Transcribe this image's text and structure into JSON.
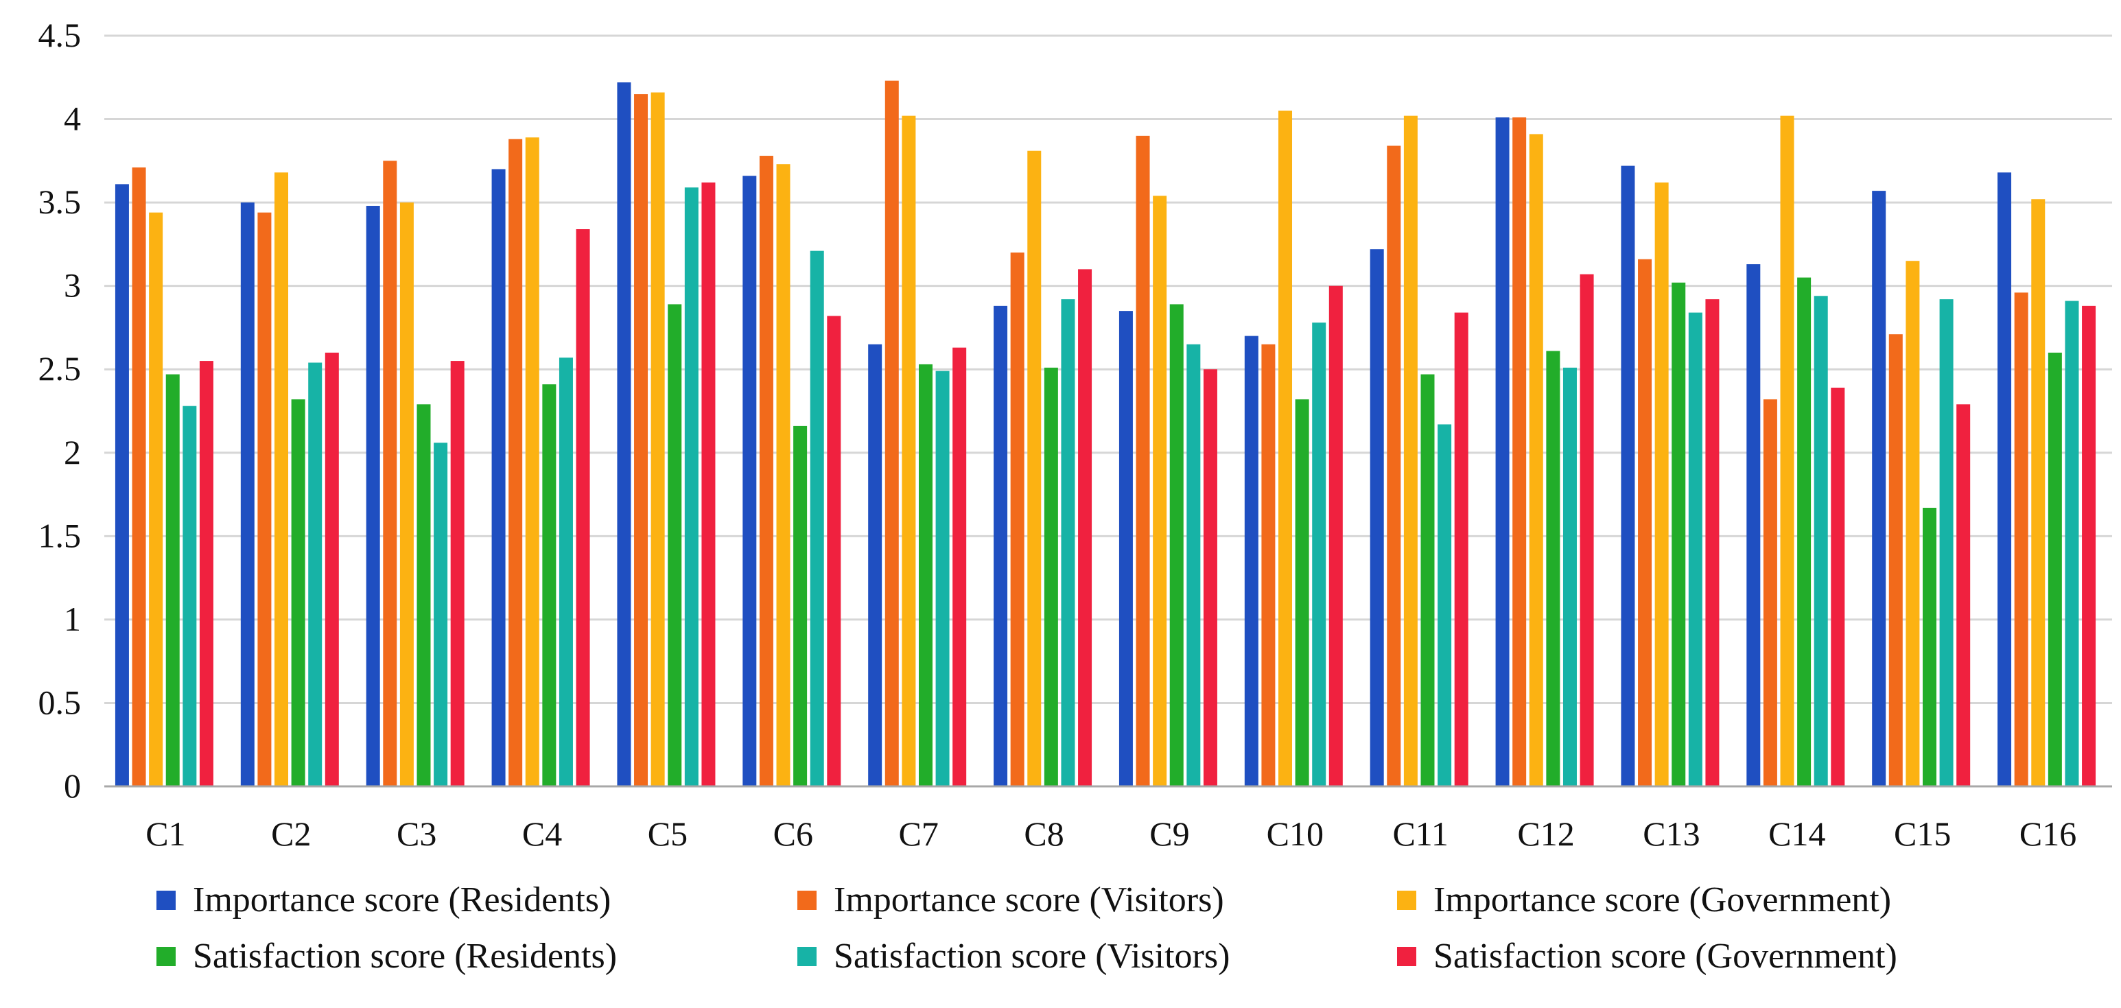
{
  "chart_data": {
    "type": "bar",
    "title": "",
    "xlabel": "",
    "ylabel": "",
    "ylim": [
      0,
      4.5
    ],
    "yticks": [
      0,
      0.5,
      1,
      1.5,
      2,
      2.5,
      3,
      3.5,
      4,
      4.5
    ],
    "ytick_labels": [
      "0",
      "0.5",
      "1",
      "1.5",
      "2",
      "2.5",
      "3",
      "3.5",
      "4",
      "4.5"
    ],
    "grid": true,
    "legend_position": "bottom",
    "categories": [
      "C1",
      "C2",
      "C3",
      "C4",
      "C5",
      "C6",
      "C7",
      "C8",
      "C9",
      "C10",
      "C11",
      "C12",
      "C13",
      "C14",
      "C15",
      "C16"
    ],
    "series": [
      {
        "name": "Importance score (Residents)",
        "color": "#1f4fc1",
        "values": [
          3.61,
          3.5,
          3.48,
          3.7,
          4.22,
          3.66,
          2.65,
          2.88,
          2.85,
          2.7,
          3.22,
          4.01,
          3.72,
          3.13,
          3.57,
          3.68
        ]
      },
      {
        "name": "Importance score (Visitors)",
        "color": "#f26a1b",
        "values": [
          3.71,
          3.44,
          3.75,
          3.88,
          4.15,
          3.78,
          4.23,
          3.2,
          3.9,
          2.65,
          3.84,
          4.01,
          3.16,
          2.32,
          2.71,
          2.96
        ]
      },
      {
        "name": "Importance score (Government)",
        "color": "#fcb212",
        "values": [
          3.44,
          3.68,
          3.5,
          3.89,
          4.16,
          3.73,
          4.02,
          3.81,
          3.54,
          4.05,
          4.02,
          3.91,
          3.62,
          4.02,
          3.15,
          3.52
        ]
      },
      {
        "name": "Satisfaction score (Residents)",
        "color": "#22ad2a",
        "values": [
          2.47,
          2.32,
          2.29,
          2.41,
          2.89,
          2.16,
          2.53,
          2.51,
          2.89,
          2.32,
          2.47,
          2.61,
          3.02,
          3.05,
          1.67,
          2.6
        ]
      },
      {
        "name": "Satisfaction score (Visitors)",
        "color": "#17b3a6",
        "values": [
          2.28,
          2.54,
          2.06,
          2.57,
          3.59,
          3.21,
          2.49,
          2.92,
          2.65,
          2.78,
          2.17,
          2.51,
          2.84,
          2.94,
          2.92,
          2.91
        ]
      },
      {
        "name": "Satisfaction score (Government)",
        "color": "#f0213f",
        "values": [
          2.55,
          2.6,
          2.55,
          3.34,
          3.62,
          2.82,
          2.63,
          3.1,
          2.5,
          3.0,
          2.84,
          3.07,
          2.92,
          2.39,
          2.29,
          2.88
        ]
      }
    ]
  }
}
